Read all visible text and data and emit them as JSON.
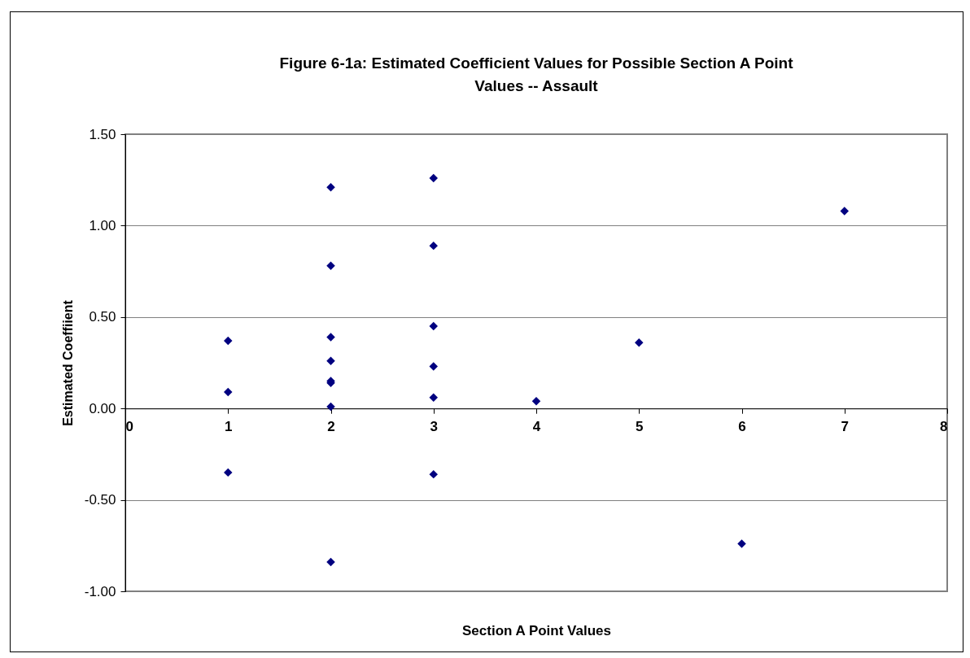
{
  "chart_data": {
    "type": "scatter",
    "title": "Figure 6-1a:  Estimated Coefficient Values for Possible Section A Point Values -- Assault",
    "xlabel": "Section A Point Values",
    "ylabel": "Estimated Coeffiient",
    "x": [
      1,
      1,
      1,
      2,
      2,
      2,
      2,
      2,
      2,
      2,
      2,
      3,
      3,
      3,
      3,
      3,
      3,
      4,
      5,
      6,
      7
    ],
    "series": [
      {
        "color": "#000080",
        "values": [
          0.37,
          0.09,
          -0.35,
          1.21,
          0.78,
          0.39,
          0.26,
          0.15,
          0.14,
          0.01,
          -0.84,
          1.26,
          0.89,
          0.45,
          0.23,
          0.06,
          -0.36,
          0.04,
          0.36,
          -0.74,
          1.08
        ]
      }
    ],
    "xlim": [
      0,
      8
    ],
    "xticks": [
      0,
      1,
      2,
      3,
      4,
      5,
      6,
      7,
      8
    ],
    "ylim": [
      -1,
      1.5
    ],
    "yticks": [
      {
        "value": -1,
        "label": "-1.00"
      },
      {
        "value": -0.5,
        "label": "-0.50"
      },
      {
        "value": 0,
        "label": "0.00"
      },
      {
        "value": 0.5,
        "label": "0.50"
      },
      {
        "value": 1,
        "label": "1.00"
      },
      {
        "value": 1.5,
        "label": "1.50"
      }
    ],
    "grid": "y",
    "marker": "diamond"
  }
}
